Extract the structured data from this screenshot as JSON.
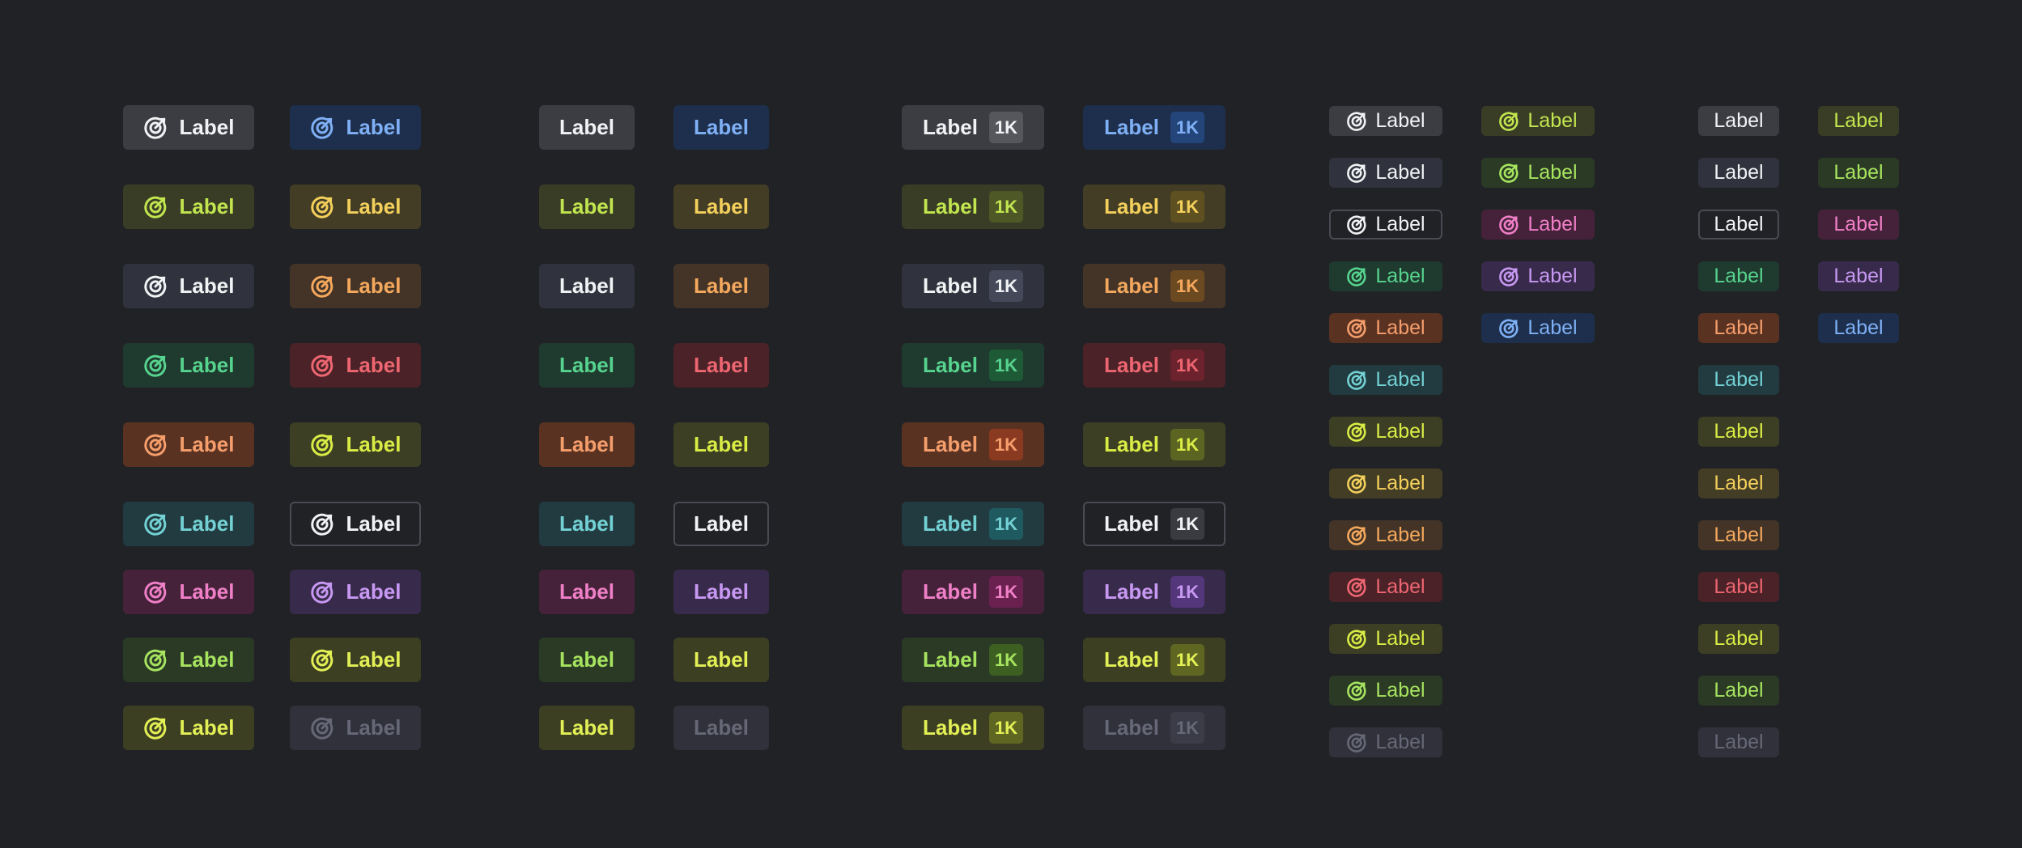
{
  "label": "Label",
  "count": "1K",
  "icon": "target-icon",
  "palette": {
    "neutral": {
      "bg": "#3c3d43",
      "fg": "#f1f2f4",
      "bbg": "#56575d"
    },
    "blue": {
      "bg": "#1d2f4c",
      "fg": "#7fb0f5",
      "bbg": "#24457a"
    },
    "olive": {
      "bg": "#3a3d25",
      "fg": "#c1e54f",
      "bbg": "#4e5826"
    },
    "gold": {
      "bg": "#433d25",
      "fg": "#f3cf5b",
      "bbg": "#5f5022"
    },
    "slate": {
      "bg": "#30323d",
      "fg": "#f1f2f4",
      "bbg": "#454859"
    },
    "orange": {
      "bg": "#433427",
      "fg": "#f4a85d",
      "bbg": "#6b4a22"
    },
    "green": {
      "bg": "#1f3a2e",
      "fg": "#56d38e",
      "bbg": "#1f5a37"
    },
    "red": {
      "bg": "#4a2227",
      "fg": "#ee6671",
      "bbg": "#6c232d"
    },
    "rust": {
      "bg": "#5a3222",
      "fg": "#f59e6c",
      "bbg": "#8a3a20"
    },
    "yellow": {
      "bg": "#3c3f23",
      "fg": "#d9ec45",
      "bbg": "#5c6422"
    },
    "teal": {
      "bg": "#213b40",
      "fg": "#73d1d4",
      "bbg": "#1f5a60"
    },
    "outline": {
      "bg": "#212226",
      "fg": "#f1f2f4",
      "bbg": "#3a3b41",
      "border": "#4a4b52"
    },
    "pink": {
      "bg": "#45223a",
      "fg": "#ef7fc6",
      "bbg": "#6b2150"
    },
    "purple": {
      "bg": "#382a4a",
      "fg": "#c798f2",
      "bbg": "#54377a"
    },
    "lime": {
      "bg": "#2b3a25",
      "fg": "#a6e35f",
      "bbg": "#3d5f22"
    },
    "chartreuse": {
      "bg": "#3d3f22",
      "fg": "#e2ef55",
      "bbg": "#5f6622"
    },
    "disabled": {
      "bg": "#30313a",
      "fg": "#676877",
      "bbg": "#3b3c48"
    }
  },
  "rows_big": [
    [
      "neutral",
      "blue"
    ],
    [
      "olive",
      "gold"
    ],
    [
      "slate",
      "orange"
    ],
    [
      "green",
      "red"
    ],
    [
      "rust",
      "yellow"
    ],
    [
      "teal",
      "outline"
    ],
    [
      "pink",
      "purple"
    ],
    [
      "lime",
      "chartreuse"
    ],
    [
      "chartreuse",
      "disabled"
    ]
  ],
  "small_col1": [
    "neutral",
    "slate",
    "outline",
    "green",
    "rust",
    "teal",
    "yellow",
    "gold",
    "orange",
    "red",
    "yellow",
    "lime",
    "disabled"
  ],
  "small_col2": [
    "olive",
    "lime",
    "pink",
    "purple",
    "blue"
  ]
}
